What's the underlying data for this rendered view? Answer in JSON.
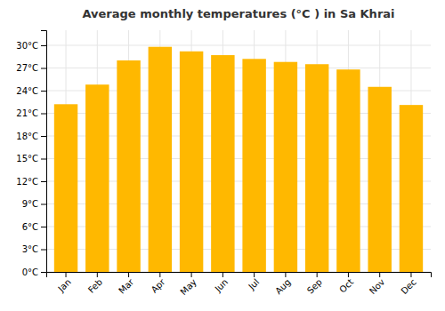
{
  "chart_data": {
    "type": "bar",
    "title": "Average monthly temperatures (°C ) in Sa Khrai",
    "categories": [
      "Jan",
      "Feb",
      "Mar",
      "Apr",
      "May",
      "Jun",
      "Jul",
      "Aug",
      "Sep",
      "Oct",
      "Nov",
      "Dec"
    ],
    "values": [
      22.2,
      24.8,
      28.0,
      29.8,
      29.2,
      28.7,
      28.2,
      27.8,
      27.5,
      26.8,
      24.5,
      22.1
    ],
    "color": "#FFB800",
    "ylim": [
      0,
      32
    ],
    "yticks": [
      {
        "value": 0,
        "label": "0°C"
      },
      {
        "value": 3,
        "label": "3°C"
      },
      {
        "value": 6,
        "label": "6°C"
      },
      {
        "value": 9,
        "label": "9°C"
      },
      {
        "value": 12,
        "label": "12°C"
      },
      {
        "value": 15,
        "label": "15°C"
      },
      {
        "value": 18,
        "label": "18°C"
      },
      {
        "value": 21,
        "label": "21°C"
      },
      {
        "value": 24,
        "label": "24°C"
      },
      {
        "value": 27,
        "label": "27°C"
      },
      {
        "value": 30,
        "label": "30°C"
      }
    ],
    "grid": true
  }
}
